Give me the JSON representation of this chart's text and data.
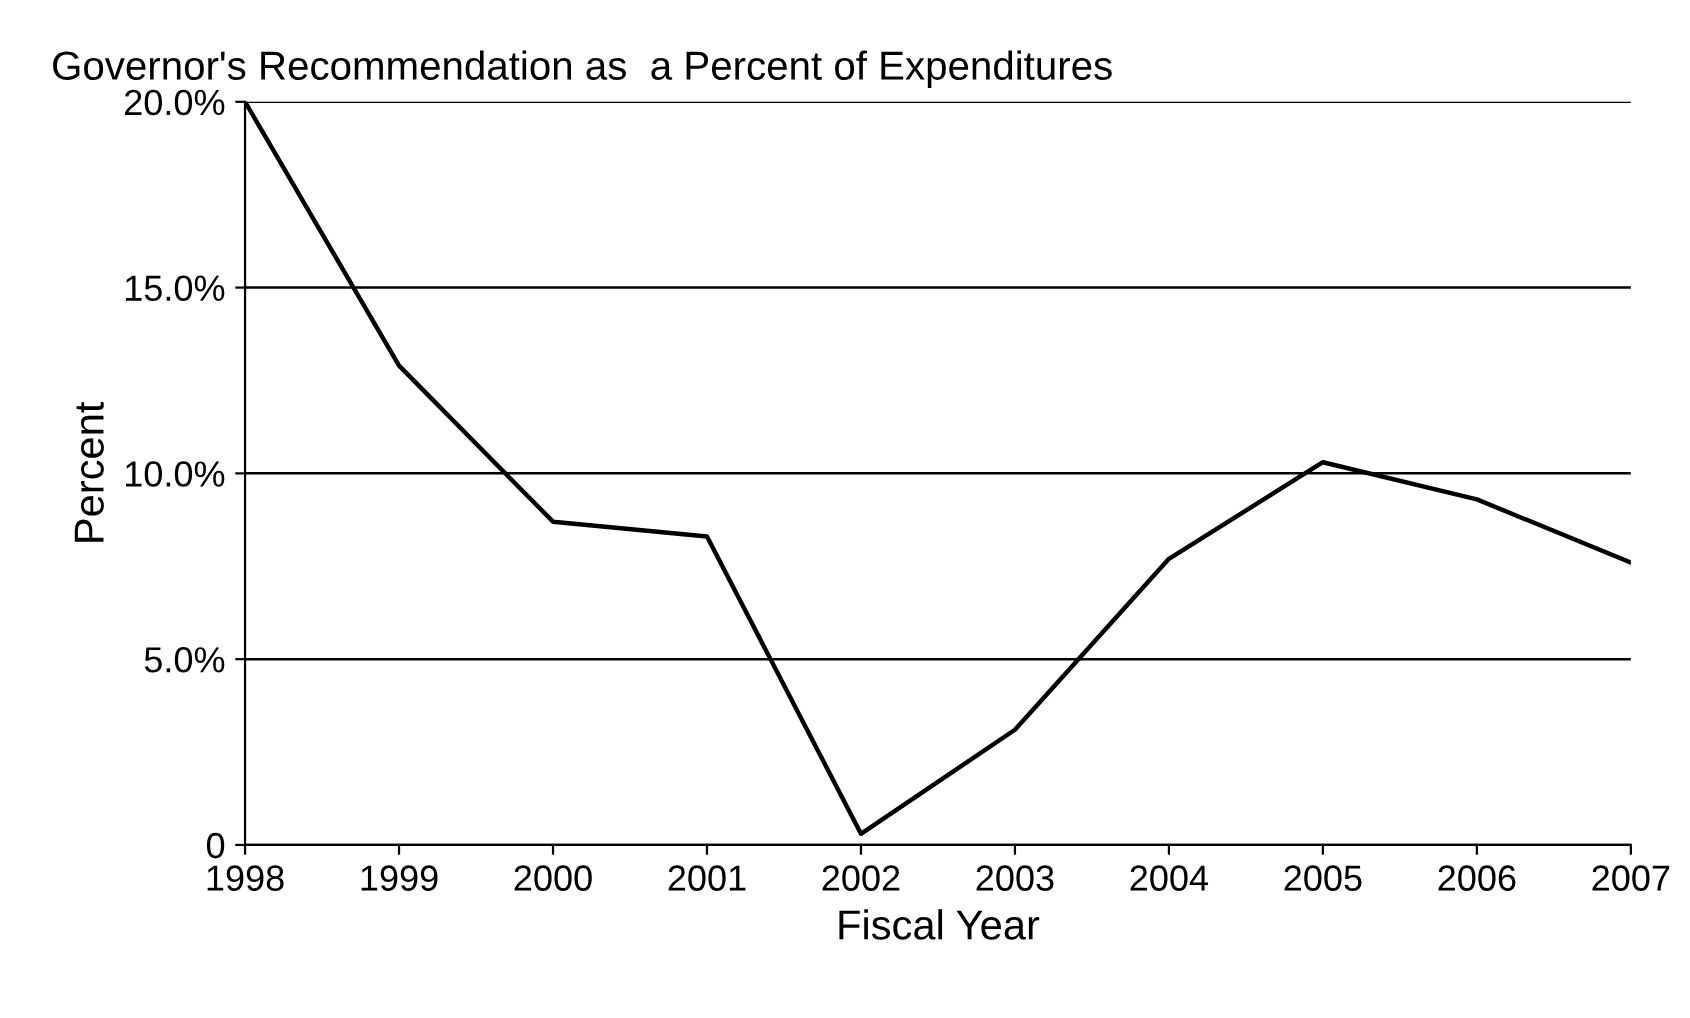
{
  "chart_data": {
    "type": "line",
    "title": "Governor's Recommendation as  a Percent of Expenditures",
    "xlabel": "Fiscal Year",
    "ylabel": "Percent",
    "x": [
      1998,
      1999,
      2000,
      2001,
      2002,
      2003,
      2004,
      2005,
      2006,
      2007
    ],
    "values": [
      20.0,
      12.9,
      8.7,
      8.3,
      0.3,
      3.1,
      7.7,
      10.3,
      9.3,
      7.6
    ],
    "color": "#000000",
    "xlim": [
      1998,
      2007
    ],
    "xticks": [
      1998,
      1999,
      2000,
      2001,
      2002,
      2003,
      2004,
      2005,
      2006,
      2007
    ],
    "ylim": [
      0,
      20
    ],
    "yticks": [
      {
        "value": 0,
        "label": "0"
      },
      {
        "value": 5,
        "label": "5.0%"
      },
      {
        "value": 10,
        "label": "10.0%"
      },
      {
        "value": 15,
        "label": "15.0%"
      },
      {
        "value": 20,
        "label": "20.0%"
      }
    ],
    "grid": "y",
    "legend": false,
    "marker": "none",
    "line_style": "solid"
  }
}
